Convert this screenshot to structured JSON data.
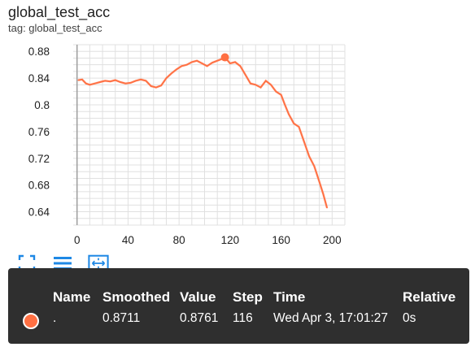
{
  "card": {
    "title": "global_test_acc",
    "tag": "tag: global_test_acc"
  },
  "colors": {
    "series": "#ff7043",
    "series_light": "#ffccbc",
    "grid": "#e0e0e0",
    "tooltip_bg": "#2f2f2f",
    "toolbar_icon": "#1e88e5"
  },
  "toolbar": {
    "icons": [
      "fullscreen-icon",
      "list-icon",
      "fit-domain-icon"
    ]
  },
  "tooltip": {
    "headers": {
      "name": "Name",
      "smoothed": "Smoothed",
      "value": "Value",
      "step": "Step",
      "time": "Time",
      "relative": "Relative"
    },
    "row": {
      "name": ".",
      "smoothed": "0.8711",
      "value": "0.8761",
      "step": "116",
      "time": "Wed Apr 3, 17:01:27",
      "relative": "0s"
    }
  },
  "chart_data": {
    "type": "line",
    "title": "global_test_acc",
    "xlabel": "",
    "ylabel": "",
    "xlim": [
      -3,
      210
    ],
    "ylim": [
      0.62,
      0.89
    ],
    "x_ticks": [
      0,
      40,
      80,
      120,
      160,
      200
    ],
    "y_ticks": [
      0.64,
      0.68,
      0.72,
      0.76,
      0.8,
      0.84,
      0.88
    ],
    "y_tick_labels": [
      "0.64",
      "0.68",
      "0.72",
      "0.76",
      "0.8",
      "0.84",
      "0.88"
    ],
    "grid": true,
    "highlight": {
      "x": 116,
      "y": 0.8711
    },
    "series": [
      {
        "x": [
          1,
          4,
          7,
          10,
          14,
          18,
          22,
          26,
          30,
          34,
          38,
          42,
          46,
          50,
          54,
          58,
          62,
          66,
          70,
          74,
          78,
          82,
          86,
          90,
          94,
          98,
          102,
          106,
          110,
          114,
          116,
          120,
          124,
          128,
          132,
          136,
          140,
          144,
          148,
          152,
          156,
          160,
          163,
          166,
          170,
          174,
          178,
          182,
          186,
          190,
          193,
          196
        ],
        "y": [
          0.837,
          0.838,
          0.832,
          0.83,
          0.832,
          0.834,
          0.836,
          0.835,
          0.837,
          0.834,
          0.832,
          0.833,
          0.836,
          0.838,
          0.836,
          0.828,
          0.826,
          0.829,
          0.84,
          0.847,
          0.853,
          0.858,
          0.86,
          0.864,
          0.866,
          0.862,
          0.858,
          0.863,
          0.866,
          0.869,
          0.8711,
          0.862,
          0.864,
          0.858,
          0.845,
          0.832,
          0.83,
          0.826,
          0.836,
          0.83,
          0.82,
          0.815,
          0.8,
          0.786,
          0.772,
          0.767,
          0.745,
          0.723,
          0.708,
          0.685,
          0.667,
          0.646
        ]
      }
    ]
  }
}
